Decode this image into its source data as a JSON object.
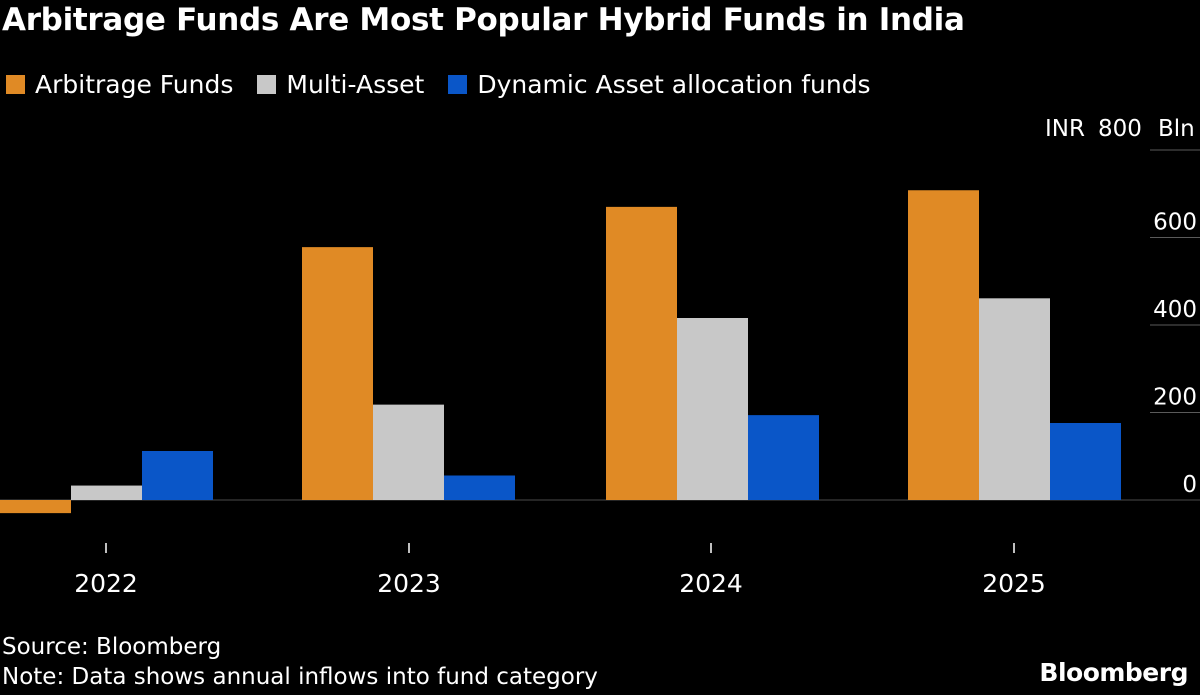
{
  "title": "Arbitrage Funds Are Most Popular Hybrid Funds in India",
  "colors": {
    "background": "#000000",
    "arbitrage": "#E08A25",
    "multi_asset": "#C8C8C8",
    "dynamic": "#0A56C8",
    "text": "#FFFFFF"
  },
  "chart_data": {
    "type": "bar",
    "title": "Arbitrage Funds Are Most Popular Hybrid Funds in India",
    "categories": [
      "2022",
      "2023",
      "2024",
      "2025"
    ],
    "series": [
      {
        "name": "Arbitrage Funds",
        "color": "#E08A25",
        "values": [
          -30,
          578,
          670,
          708
        ]
      },
      {
        "name": "Multi-Asset",
        "color": "#C8C8C8",
        "values": [
          33,
          218,
          416,
          461
        ]
      },
      {
        "name": "Dynamic Asset allocation funds",
        "color": "#0A56C8",
        "values": [
          112,
          56,
          194,
          176
        ]
      }
    ],
    "y_unit_label": "INR",
    "y_unit_suffix": "Bln",
    "yticks": [
      "0",
      "200",
      "400",
      "600",
      "800"
    ],
    "ylim": [
      -40,
      800
    ],
    "xlabel": "",
    "ylabel": "",
    "legend_position": "top-left",
    "y_axis_position": "right"
  },
  "footer": {
    "source": "Source: Bloomberg",
    "note": "Note: Data shows annual inflows into fund category"
  },
  "brand": "Bloomberg"
}
